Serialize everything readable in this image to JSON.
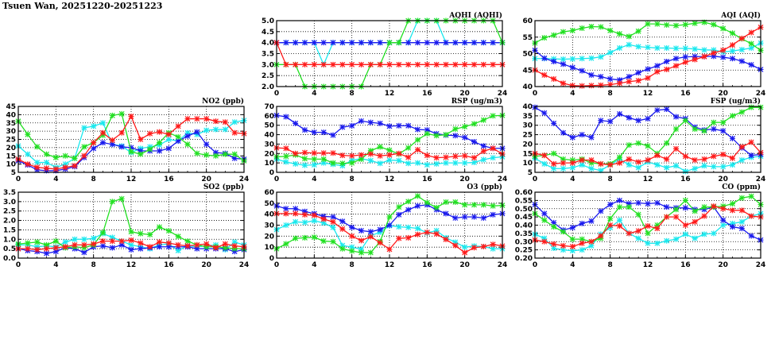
{
  "page_title": "Tsuen Wan, 20251220-20251223",
  "series_colors": [
    "#ff1a1a",
    "#22e022",
    "#1a1aee",
    "#1ae8ee"
  ],
  "chart_data": [
    {
      "type": "line",
      "title": "AQHI (AQHI)",
      "ylim": [
        2.0,
        5.0
      ],
      "yticks": [
        "2.0",
        "2.5",
        "3.0",
        "3.5",
        "4.0",
        "4.5",
        "5.0"
      ],
      "xlim": [
        0,
        24
      ],
      "xticks": [
        "0",
        "4",
        "8",
        "12",
        "16",
        "20",
        "24"
      ],
      "grid": true,
      "series": [
        {
          "values": [
            4,
            3,
            3,
            3,
            3,
            3,
            3,
            3,
            3,
            3,
            3,
            3,
            3,
            3,
            3,
            3,
            3,
            3,
            3,
            3,
            3,
            3,
            3,
            3,
            3
          ]
        },
        {
          "values": [
            3,
            3,
            3,
            2,
            2,
            2,
            2,
            2,
            2,
            2,
            3,
            3,
            4,
            4,
            5,
            5,
            5,
            5,
            5,
            5,
            5,
            5,
            5,
            5,
            4
          ]
        },
        {
          "values": [
            4,
            4,
            4,
            4,
            4,
            4,
            4,
            4,
            4,
            4,
            4,
            4,
            4,
            4,
            4,
            4,
            4,
            4,
            4,
            4,
            4,
            4,
            4,
            4,
            4
          ]
        },
        {
          "values": [
            4,
            4,
            4,
            4,
            4,
            3,
            4,
            4,
            4,
            4,
            4,
            4,
            4,
            4,
            4,
            5,
            5,
            5,
            4,
            4,
            4,
            4,
            4,
            4,
            4
          ]
        }
      ]
    },
    {
      "type": "line",
      "title": "AQI (AQI)",
      "ylim": [
        40,
        60
      ],
      "yticks": [
        "40",
        "45",
        "50",
        "55",
        "60"
      ],
      "xlim": [
        0,
        24
      ],
      "xticks": [
        "0",
        "4",
        "8",
        "12",
        "16",
        "20",
        "24"
      ],
      "grid": true,
      "series": [
        {
          "values": [
            45,
            43.5,
            42.3,
            41,
            40.3,
            40.2,
            40.3,
            40.4,
            40.6,
            41,
            41.5,
            41.8,
            42.6,
            44.5,
            45.2,
            46.3,
            47.4,
            48.2,
            49.1,
            50.2,
            51,
            52.6,
            54.6,
            56.4,
            58
          ]
        },
        {
          "values": [
            53.2,
            54.8,
            55.6,
            56.6,
            57,
            57.7,
            58.2,
            58.1,
            57,
            56,
            55.2,
            56.8,
            59,
            59,
            58.7,
            58.5,
            58.8,
            59.2,
            59.5,
            58.8,
            57.6,
            56.2,
            54.5,
            53,
            51
          ]
        },
        {
          "values": [
            51,
            48.6,
            47.6,
            46.8,
            45.8,
            44.8,
            43.5,
            43,
            42.3,
            42,
            43,
            44.2,
            45.3,
            46.3,
            47.6,
            48.5,
            49,
            49.1,
            49.1,
            49.2,
            48.9,
            48.5,
            47.7,
            46.6,
            45.2
          ]
        },
        {
          "values": [
            48.5,
            48.5,
            48.4,
            48.3,
            48.4,
            48.5,
            48.6,
            49,
            50.3,
            51.7,
            52.7,
            52.1,
            51.9,
            51.7,
            51.7,
            51.6,
            51.6,
            51.4,
            51.1,
            51.1,
            50.5,
            50.8,
            51.2,
            51.7,
            53.2
          ]
        }
      ]
    },
    {
      "type": "line",
      "title": "NO2 (ppb)",
      "ylim": [
        5,
        45
      ],
      "yticks": [
        "5",
        "10",
        "15",
        "20",
        "25",
        "30",
        "35",
        "40",
        "45"
      ],
      "xlim": [
        0,
        24
      ],
      "xticks": [
        "0",
        "4",
        "8",
        "12",
        "16",
        "20",
        "24"
      ],
      "grid": true,
      "series": [
        {
          "values": [
            13,
            10,
            8,
            7.5,
            7,
            8,
            9,
            15,
            23,
            29,
            24.5,
            29,
            39,
            25,
            28.5,
            29.5,
            28,
            33,
            37.5,
            37.5,
            37.5,
            36,
            35.5,
            29,
            28.5
          ]
        },
        {
          "values": [
            36,
            28,
            20.5,
            16,
            14,
            15,
            13.5,
            20.5,
            23,
            27.5,
            39.5,
            40.5,
            17.5,
            16,
            19,
            23,
            29,
            26.5,
            22,
            16.5,
            15.5,
            15,
            16,
            16,
            12
          ]
        },
        {
          "values": [
            12,
            9.5,
            6.5,
            6,
            6,
            7,
            8.5,
            14,
            19.5,
            23,
            22,
            20.5,
            20,
            18,
            18,
            18,
            19.5,
            24,
            27,
            29.5,
            22,
            17,
            16.5,
            13.5,
            13
          ]
        },
        {
          "values": [
            21,
            16,
            11,
            11,
            8,
            10,
            13.5,
            32,
            33,
            35,
            22,
            21,
            17,
            19.5,
            20.5,
            21.5,
            25,
            24,
            29,
            28,
            30.5,
            31,
            31,
            35.5,
            36.5
          ]
        }
      ]
    },
    {
      "type": "line",
      "title": "RSP (ug/m3)",
      "ylim": [
        0,
        70
      ],
      "yticks": [
        "0",
        "10",
        "20",
        "30",
        "40",
        "50",
        "60",
        "70"
      ],
      "xlim": [
        0,
        24
      ],
      "xticks": [
        "0",
        "4",
        "8",
        "12",
        "16",
        "20",
        "24"
      ],
      "grid": true,
      "series": [
        {
          "values": [
            26,
            25.5,
            20,
            21,
            20.5,
            20.5,
            20.5,
            18,
            17.5,
            18.5,
            19.5,
            17.5,
            18.5,
            20,
            16,
            24,
            18,
            15.5,
            16,
            17,
            17.5,
            15.5,
            22.5,
            25.5,
            19.5
          ]
        },
        {
          "values": [
            16.5,
            17,
            18.5,
            14.5,
            14,
            14,
            10,
            9.5,
            10,
            14,
            23,
            27,
            23.5,
            19.5,
            26,
            34.5,
            41,
            39,
            40,
            46,
            48.5,
            51.5,
            55.5,
            60,
            60.5
          ]
        },
        {
          "values": [
            60.5,
            59,
            52,
            45,
            42.5,
            42.5,
            39.5,
            48,
            49.5,
            54.5,
            53,
            52,
            49,
            49.5,
            49.5,
            45.5,
            45,
            41,
            39.5,
            39,
            37,
            32.5,
            28,
            25.5,
            25.5
          ]
        },
        {
          "values": [
            14,
            11,
            9,
            7.5,
            8,
            10,
            8.5,
            7,
            13,
            14.5,
            12.5,
            9.5,
            13,
            12.5,
            9.5,
            10,
            8,
            9,
            10,
            10,
            10,
            10.5,
            13.5,
            15.5,
            16.5
          ]
        }
      ]
    },
    {
      "type": "line",
      "title": "FSP (ug/m3)",
      "ylim": [
        5,
        40
      ],
      "yticks": [
        "5",
        "10",
        "15",
        "20",
        "25",
        "30",
        "35",
        "40"
      ],
      "xlim": [
        0,
        24
      ],
      "xticks": [
        "0",
        "4",
        "8",
        "12",
        "16",
        "20",
        "24"
      ],
      "grid": true,
      "series": [
        {
          "values": [
            15,
            14,
            9.5,
            10,
            10,
            11.5,
            11.5,
            9.5,
            9,
            10,
            12,
            10.5,
            11.5,
            14,
            12,
            17.5,
            13.5,
            11.5,
            12,
            13.5,
            14.5,
            12.5,
            18.5,
            21,
            15.5
          ]
        },
        {
          "values": [
            13.5,
            14,
            15,
            12,
            11.5,
            12,
            10,
            9.5,
            9.5,
            13,
            19.5,
            20.5,
            19,
            15,
            20.5,
            28,
            32.5,
            28,
            27,
            31.5,
            31.5,
            35,
            37,
            39.5,
            39.5
          ]
        },
        {
          "values": [
            39.5,
            36.5,
            31,
            26,
            23.5,
            25,
            23.5,
            32.5,
            32,
            36,
            34,
            32.5,
            33.5,
            38,
            38.5,
            34.5,
            33.5,
            29,
            27.5,
            28,
            27,
            23,
            18,
            14,
            14.5
          ]
        },
        {
          "values": [
            12.5,
            9.5,
            7,
            7,
            7.5,
            9,
            7,
            6,
            9,
            12,
            9,
            7.5,
            10.5,
            9,
            7.5,
            8.5,
            5.5,
            7,
            8.5,
            8,
            8,
            9,
            11.5,
            13,
            13.5
          ]
        }
      ]
    },
    {
      "type": "line",
      "title": "SO2 (ppb)",
      "ylim": [
        0,
        3.5
      ],
      "yticks": [
        "0.0",
        "0.5",
        "1.0",
        "1.5",
        "2.0",
        "2.5",
        "3.0",
        "3.5"
      ],
      "xlim": [
        0,
        24
      ],
      "xticks": [
        "0",
        "4",
        "8",
        "12",
        "16",
        "20",
        "24"
      ],
      "grid": true,
      "series": [
        {
          "values": [
            0.5,
            0.5,
            0.45,
            0.5,
            0.55,
            0.6,
            0.7,
            0.7,
            0.75,
            0.9,
            0.9,
            0.9,
            0.95,
            0.8,
            0.6,
            0.85,
            0.8,
            0.7,
            0.65,
            0.7,
            0.75,
            0.55,
            0.75,
            0.65,
            0.6
          ]
        },
        {
          "values": [
            0.75,
            0.8,
            0.85,
            0.7,
            0.9,
            0.55,
            0.6,
            0.55,
            0.7,
            1.35,
            3.0,
            3.15,
            1.4,
            1.3,
            1.25,
            1.65,
            1.45,
            1.15,
            0.9,
            0.7,
            0.6,
            0.6,
            0.55,
            0.5,
            0.5
          ]
        },
        {
          "values": [
            0.5,
            0.4,
            0.35,
            0.25,
            0.35,
            0.55,
            0.5,
            0.3,
            0.6,
            0.65,
            0.55,
            0.7,
            0.45,
            0.5,
            0.55,
            0.6,
            0.6,
            0.6,
            0.6,
            0.5,
            0.5,
            0.5,
            0.5,
            0.35,
            0.45
          ]
        },
        {
          "values": [
            0.7,
            0.7,
            0.6,
            0.65,
            0.6,
            0.85,
            1.0,
            1.0,
            1.05,
            1.3,
            1.1,
            0.9,
            0.7,
            0.6,
            0.5,
            0.7,
            0.75,
            0.4,
            0.65,
            0.6,
            0.65,
            0.7,
            0.45,
            0.85,
            0.7
          ]
        }
      ]
    },
    {
      "type": "line",
      "title": "O3 (ppb)",
      "ylim": [
        0,
        60
      ],
      "yticks": [
        "0",
        "10",
        "20",
        "30",
        "40",
        "50",
        "60"
      ],
      "xlim": [
        0,
        24
      ],
      "xticks": [
        "0",
        "4",
        "8",
        "12",
        "16",
        "20",
        "24"
      ],
      "grid": true,
      "series": [
        {
          "values": [
            40.5,
            40.5,
            40.5,
            39.5,
            39,
            35.5,
            33,
            26.5,
            20,
            16,
            19.5,
            14,
            8,
            18,
            18.5,
            21.5,
            23.5,
            22,
            17,
            11.5,
            5,
            9.5,
            10.5,
            12.5,
            11
          ]
        },
        {
          "values": [
            8.5,
            13,
            18,
            18.5,
            19,
            15.5,
            15,
            8.5,
            6.5,
            5,
            5,
            15,
            37.5,
            46.5,
            51.5,
            56.5,
            50.5,
            46,
            51,
            51,
            48.5,
            48.5,
            48.5,
            47.5,
            48
          ]
        },
        {
          "values": [
            47.5,
            45,
            45,
            42.5,
            40.5,
            38,
            37.5,
            33.5,
            28,
            25,
            24,
            26,
            30,
            39.5,
            44,
            47.5,
            48.5,
            44,
            40.5,
            36.5,
            37.5,
            37.5,
            36.5,
            39.5,
            40.5
          ]
        },
        {
          "values": [
            26,
            30,
            33,
            32.5,
            34,
            32,
            28,
            11.5,
            10,
            8,
            20.5,
            23.5,
            29.5,
            28.5,
            28,
            27,
            23,
            25,
            18.5,
            14.5,
            10,
            11,
            10.5,
            8.5,
            8.5
          ]
        }
      ]
    },
    {
      "type": "line",
      "title": "CO (ppm)",
      "ylim": [
        0.2,
        0.6
      ],
      "yticks": [
        "0.20",
        "0.25",
        "0.30",
        "0.35",
        "0.40",
        "0.45",
        "0.50",
        "0.55",
        "0.60"
      ],
      "xlim": [
        0,
        24
      ],
      "xticks": [
        "0",
        "4",
        "8",
        "12",
        "16",
        "20",
        "24"
      ],
      "grid": true,
      "series": [
        {
          "values": [
            0.31,
            0.3,
            0.285,
            0.275,
            0.27,
            0.29,
            0.3,
            0.335,
            0.4,
            0.395,
            0.35,
            0.365,
            0.395,
            0.38,
            0.45,
            0.45,
            0.4,
            0.42,
            0.455,
            0.515,
            0.5,
            0.49,
            0.49,
            0.455,
            0.45
          ]
        },
        {
          "values": [
            0.47,
            0.43,
            0.39,
            0.36,
            0.315,
            0.315,
            0.3,
            0.32,
            0.44,
            0.51,
            0.51,
            0.465,
            0.35,
            0.4,
            0.45,
            0.495,
            0.55,
            0.485,
            0.51,
            0.51,
            0.515,
            0.53,
            0.565,
            0.575,
            0.525
          ]
        },
        {
          "values": [
            0.525,
            0.47,
            0.415,
            0.37,
            0.385,
            0.41,
            0.425,
            0.485,
            0.525,
            0.55,
            0.53,
            0.535,
            0.53,
            0.535,
            0.51,
            0.505,
            0.505,
            0.495,
            0.495,
            0.51,
            0.43,
            0.39,
            0.38,
            0.335,
            0.31
          ]
        },
        {
          "values": [
            0.345,
            0.32,
            0.26,
            0.25,
            0.245,
            0.25,
            0.275,
            0.345,
            0.385,
            0.43,
            0.35,
            0.32,
            0.29,
            0.29,
            0.305,
            0.315,
            0.345,
            0.32,
            0.345,
            0.35,
            0.4,
            0.41,
            0.42,
            0.455,
            0.47
          ]
        }
      ]
    }
  ]
}
